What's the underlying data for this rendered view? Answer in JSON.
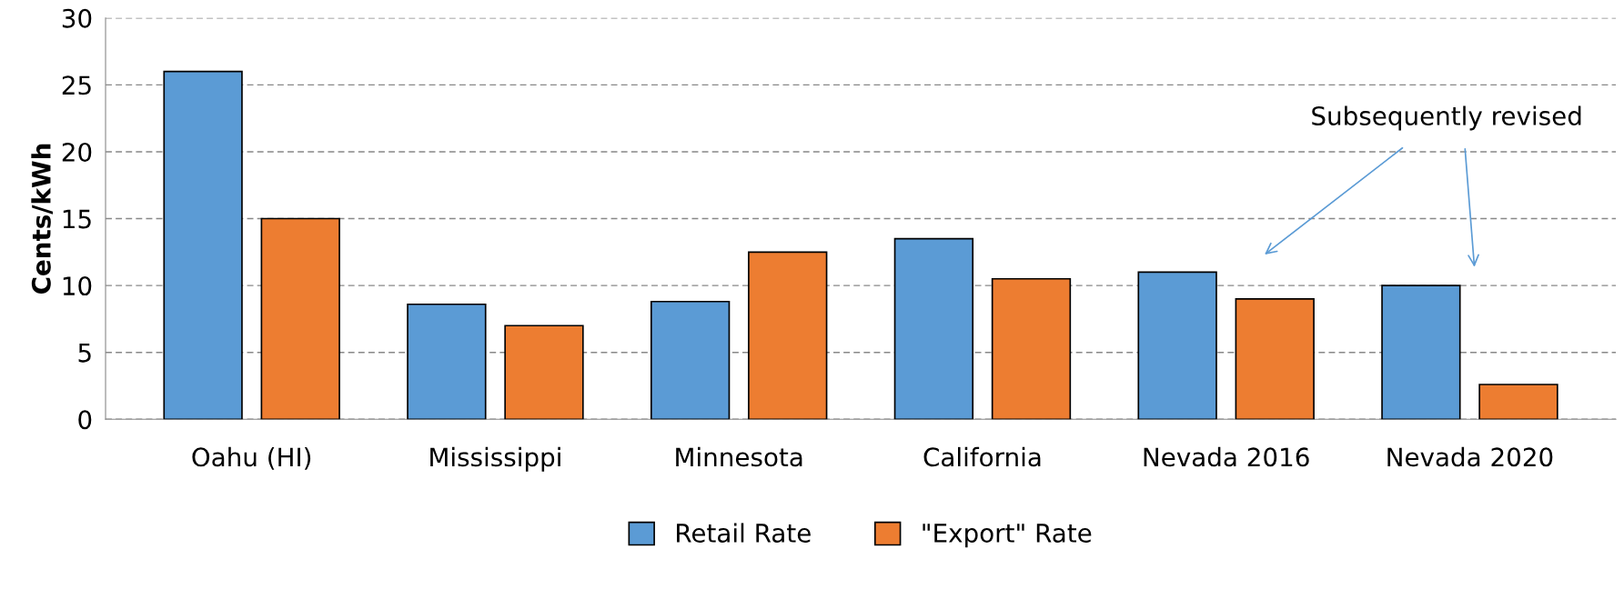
{
  "chart_data": {
    "type": "bar",
    "ylabel": "Cents/kWh",
    "categories": [
      "Oahu (HI)",
      "Mississippi",
      "Minnesota",
      "California",
      "Nevada 2016",
      "Nevada 2020"
    ],
    "series": [
      {
        "name": "Retail Rate",
        "color": "#5b9bd5",
        "values": [
          26,
          8.6,
          8.8,
          13.5,
          11,
          10
        ]
      },
      {
        "name": "\"Export\" Rate",
        "color": "#ed7d31",
        "values": [
          15,
          7,
          12.5,
          10.5,
          9,
          2.6
        ]
      }
    ],
    "ylim": [
      0,
      30
    ],
    "yticks": [
      0,
      5,
      10,
      15,
      20,
      25,
      30
    ],
    "grid": "y",
    "legend": "bottom",
    "annotations": [
      "Subsequently revised"
    ]
  }
}
